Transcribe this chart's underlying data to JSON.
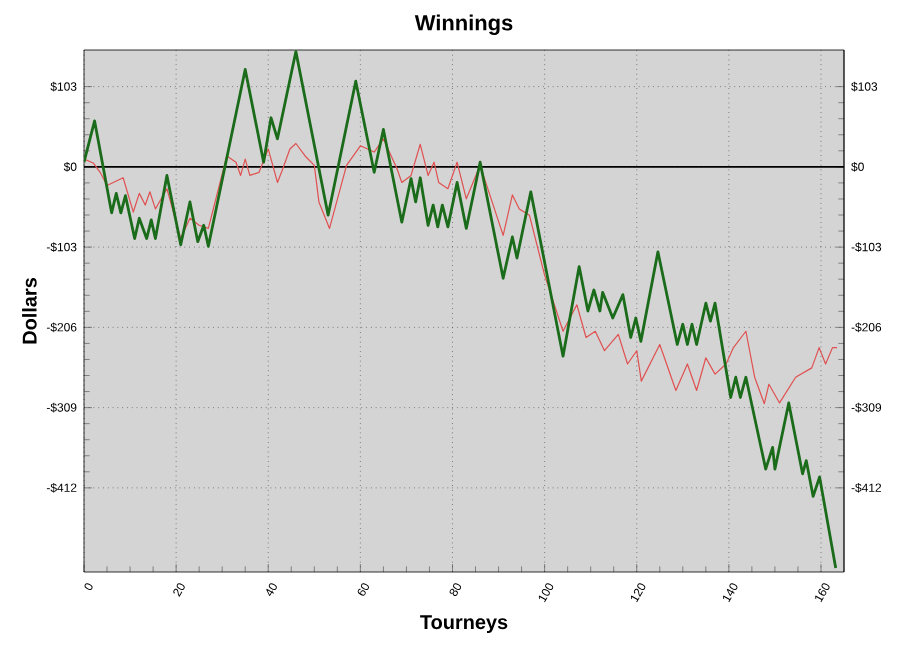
{
  "chart_data": {
    "type": "line",
    "title": "Winnings",
    "xlabel": "Tourneys",
    "ylabel": "Dollars",
    "xlim": [
      0,
      165
    ],
    "xticks": [
      0,
      20,
      40,
      60,
      80,
      100,
      120,
      140,
      160
    ],
    "ylim": [
      -520,
      150
    ],
    "yticks": [
      {
        "value": 103,
        "label": "$103"
      },
      {
        "value": 0,
        "label": "$0"
      },
      {
        "value": -103,
        "label": "-$103"
      },
      {
        "value": -206,
        "label": "-$206"
      },
      {
        "value": -309,
        "label": "-$309"
      },
      {
        "value": -412,
        "label": "-$412"
      }
    ],
    "y2lim": [
      -520,
      150
    ],
    "y2ticks": [
      {
        "value": 103,
        "label": "$103"
      },
      {
        "value": 0,
        "label": "$0"
      },
      {
        "value": -103,
        "label": "-$103"
      },
      {
        "value": -206,
        "label": "-$206"
      },
      {
        "value": -309,
        "label": "-$309"
      },
      {
        "value": -412,
        "label": "-$412"
      }
    ],
    "grid": true,
    "marker": "none",
    "line_style": "solid",
    "ref_lines": [
      {
        "axis": "y",
        "value": 0,
        "color": "#000000"
      }
    ],
    "series": [
      {
        "color": "#e05050",
        "x": [
          0,
          2,
          3.5,
          5,
          8.5,
          10.7,
          12,
          13.3,
          14.3,
          15.5,
          18,
          21,
          23,
          25,
          27,
          31,
          33,
          34,
          35,
          36,
          38,
          40,
          42,
          43,
          44.7,
          46,
          48,
          50,
          51,
          53.3,
          57,
          60,
          63,
          65,
          68,
          69,
          71,
          73,
          74.7,
          76,
          77,
          79,
          81,
          83,
          86,
          91,
          93,
          94.5,
          96.7,
          100,
          104,
          107,
          109,
          111,
          113,
          116,
          118,
          120,
          121,
          125,
          128.5,
          131,
          133,
          135,
          137,
          139.4,
          141,
          143.7,
          145.6,
          147.7,
          148.7,
          151,
          154.5,
          158,
          159.6,
          161,
          162.5,
          163.5
        ],
        "values": [
          10,
          5,
          -7,
          -24,
          -14,
          -58,
          -34,
          -49,
          -32,
          -54,
          -28,
          -92,
          -66,
          -75,
          -79,
          14,
          6,
          -11,
          10,
          -11,
          -7,
          23,
          -20,
          -5,
          23,
          30,
          14,
          2,
          -45,
          -79,
          2,
          27,
          19,
          36,
          -3,
          -20,
          -11,
          29,
          -11,
          6,
          -20,
          -28,
          6,
          -41,
          2,
          -88,
          -36,
          -54,
          -62,
          -139,
          -211,
          -177,
          -219,
          -211,
          -236,
          -215,
          -253,
          -236,
          -275,
          -228,
          -287,
          -253,
          -287,
          -245,
          -266,
          -253,
          -232,
          -211,
          -270,
          -304,
          -279,
          -303,
          -270,
          -258,
          -232,
          -253,
          -232,
          -232
        ]
      },
      {
        "color": "#1a6b1a",
        "x": [
          0,
          2.3,
          6,
          7,
          8,
          9,
          11,
          12,
          13.6,
          14.6,
          15.5,
          18,
          21,
          23,
          24.7,
          26,
          27,
          35,
          39,
          40.6,
          42,
          46,
          53,
          59,
          63,
          65,
          69,
          71,
          72,
          73,
          74.7,
          75.8,
          76.8,
          77.8,
          79,
          81,
          83,
          86,
          91,
          93,
          94,
          97,
          104,
          107.5,
          109.4,
          110.7,
          112,
          112.6,
          114.8,
          117,
          118.7,
          119.8,
          120.9,
          124.6,
          128.8,
          130,
          131,
          132,
          133,
          135,
          136,
          137,
          140.4,
          141.5,
          142.5,
          143.7,
          148,
          149.5,
          150,
          153,
          156,
          156.8,
          158.3,
          159.7,
          163.2
        ],
        "values": [
          6,
          59,
          -59,
          -34,
          -59,
          -37,
          -92,
          -66,
          -92,
          -68,
          -92,
          -11,
          -100,
          -45,
          -96,
          -75,
          -102,
          125,
          6,
          63,
          36,
          148,
          -62,
          110,
          -7,
          48,
          -71,
          -15,
          -45,
          -14,
          -75,
          -49,
          -77,
          -49,
          -77,
          -20,
          -79,
          6,
          -143,
          -90,
          -117,
          -32,
          -243,
          -128,
          -185,
          -158,
          -185,
          -161,
          -194,
          -164,
          -219,
          -194,
          -224,
          -109,
          -228,
          -202,
          -228,
          -202,
          -228,
          -175,
          -198,
          -175,
          -296,
          -270,
          -296,
          -270,
          -388,
          -360,
          -388,
          -303,
          -394,
          -377,
          -423,
          -398,
          -515
        ]
      }
    ]
  }
}
